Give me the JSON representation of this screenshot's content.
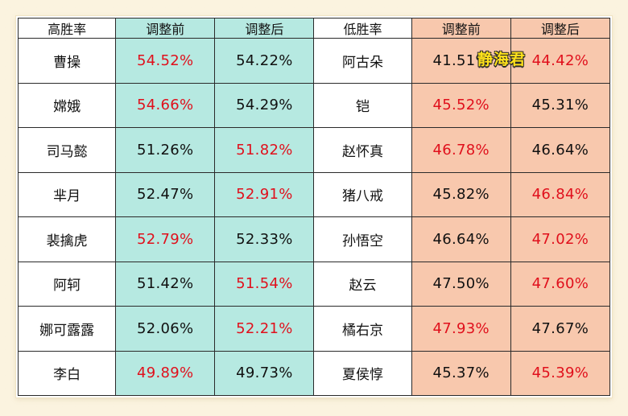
{
  "headers": [
    "高胜率",
    "调整前",
    "调整后",
    "低胜率",
    "调整前",
    "调整后"
  ],
  "watermark": "静海君",
  "colors": {
    "teal": "#b6e9e1",
    "peach": "#f8c8ad",
    "highlight_red": "#e0101c"
  },
  "rows": [
    {
      "high_hero": "曹操",
      "high_before": "54.52%",
      "high_after": "54.22%",
      "low_hero": "阿古朵",
      "low_before": "41.51%",
      "low_after": "44.42%",
      "red": [
        1,
        5
      ]
    },
    {
      "high_hero": "嫦娥",
      "high_before": "54.66%",
      "high_after": "54.29%",
      "low_hero": "铠",
      "low_before": "45.52%",
      "low_after": "45.31%",
      "red": [
        1,
        4
      ]
    },
    {
      "high_hero": "司马懿",
      "high_before": "51.26%",
      "high_after": "51.82%",
      "low_hero": "赵怀真",
      "low_before": "46.78%",
      "low_after": "46.64%",
      "red": [
        2,
        4
      ]
    },
    {
      "high_hero": "芈月",
      "high_before": "52.47%",
      "high_after": "52.91%",
      "low_hero": "猪八戒",
      "low_before": "45.82%",
      "low_after": "46.84%",
      "red": [
        2,
        5
      ]
    },
    {
      "high_hero": "裴擒虎",
      "high_before": "52.79%",
      "high_after": "52.33%",
      "low_hero": "孙悟空",
      "low_before": "46.64%",
      "low_after": "47.02%",
      "red": [
        1,
        5
      ]
    },
    {
      "high_hero": "阿轲",
      "high_before": "51.42%",
      "high_after": "51.54%",
      "low_hero": "赵云",
      "low_before": "47.50%",
      "low_after": "47.60%",
      "red": [
        2,
        5
      ]
    },
    {
      "high_hero": "娜可露露",
      "high_before": "52.06%",
      "high_after": "52.21%",
      "low_hero": "橘右京",
      "low_before": "47.93%",
      "low_after": "47.67%",
      "red": [
        2,
        4
      ]
    },
    {
      "high_hero": "李白",
      "high_before": "49.89%",
      "high_after": "49.73%",
      "low_hero": "夏侯惇",
      "low_before": "45.37%",
      "low_after": "45.39%",
      "red": [
        1,
        5
      ]
    }
  ]
}
